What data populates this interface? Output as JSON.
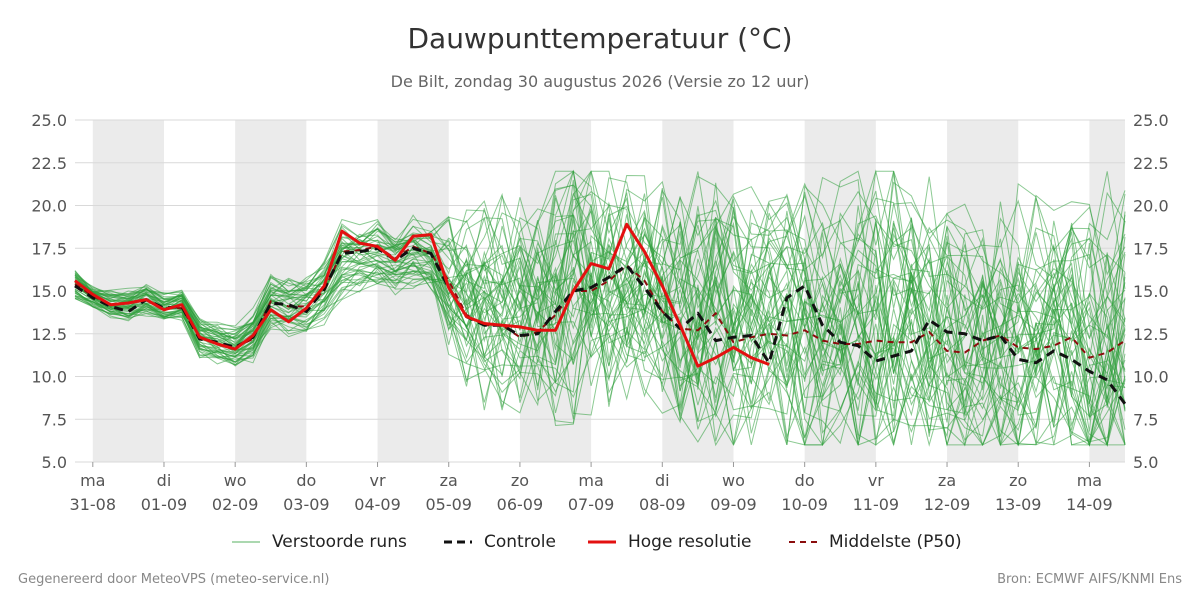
{
  "header": {
    "title": "Dauwpunttemperatuur (°C)",
    "subtitle": "De Bilt, zondag 30 augustus 2026 (Versie zo 12 uur)"
  },
  "legend": {
    "ensemble": "Verstoorde runs",
    "control": "Controle",
    "hires": "Hoge resolutie",
    "median": "Middelste (P50)"
  },
  "footer": {
    "left": "Gegenereerd door MeteoVPS (meteo-service.nl)",
    "right": "Bron: ECMWF AIFS/KNMI Ens"
  },
  "colors": {
    "ensemble": "#2e9e3a",
    "control": "#111111",
    "hires": "#e31010",
    "median": "#8b0d0d",
    "weekend_band": "#ebebeb",
    "grid": "#d9d9d9"
  },
  "chart_data": {
    "type": "line",
    "title": "Dauwpunttemperatuur (°C)",
    "ylim": [
      5.0,
      25.0
    ],
    "yticks": [
      "5.0",
      "7.5",
      "10.0",
      "12.5",
      "15.0",
      "17.5",
      "20.0",
      "22.5",
      "25.0"
    ],
    "xlim": [
      -0.25,
      14.5
    ],
    "x_unit": "days since 31-08",
    "grid": "horizontal",
    "legend_position": "bottom",
    "days": [
      {
        "weekday": "ma",
        "date": "31-08"
      },
      {
        "weekday": "di",
        "date": "01-09"
      },
      {
        "weekday": "wo",
        "date": "02-09"
      },
      {
        "weekday": "do",
        "date": "03-09"
      },
      {
        "weekday": "vr",
        "date": "04-09"
      },
      {
        "weekday": "za",
        "date": "05-09"
      },
      {
        "weekday": "zo",
        "date": "06-09"
      },
      {
        "weekday": "ma",
        "date": "07-09"
      },
      {
        "weekday": "di",
        "date": "08-09"
      },
      {
        "weekday": "wo",
        "date": "09-09"
      },
      {
        "weekday": "do",
        "date": "10-09"
      },
      {
        "weekday": "vr",
        "date": "11-09"
      },
      {
        "weekday": "za",
        "date": "12-09"
      },
      {
        "weekday": "zo",
        "date": "13-09"
      },
      {
        "weekday": "ma",
        "date": "14-09"
      }
    ],
    "shaded_bands": [
      [
        0,
        1
      ],
      [
        2,
        3
      ],
      [
        4,
        5
      ],
      [
        6,
        7
      ],
      [
        8,
        9
      ],
      [
        10,
        11
      ],
      [
        12,
        13
      ],
      [
        14,
        14.5
      ]
    ],
    "series": [
      {
        "name": "Controle",
        "style": "dashed",
        "x": [
          -0.25,
          0,
          0.25,
          0.5,
          0.75,
          1,
          1.25,
          1.5,
          1.75,
          2,
          2.25,
          2.5,
          2.75,
          3,
          3.25,
          3.5,
          3.75,
          4,
          4.25,
          4.5,
          4.75,
          5,
          5.25,
          5.5,
          5.75,
          6,
          6.25,
          6.5,
          6.75,
          7,
          7.25,
          7.5,
          7.75,
          8,
          8.25,
          8.5,
          8.75,
          9,
          9.25,
          9.5,
          9.75,
          10,
          10.25,
          10.5,
          10.75,
          11,
          11.25,
          11.5,
          11.75,
          12,
          12.25,
          12.5,
          12.75,
          13,
          13.25,
          13.5,
          13.75,
          14,
          14.25,
          14.5
        ],
        "values": [
          15.3,
          14.6,
          14.1,
          13.8,
          14.5,
          14.0,
          14.1,
          12.2,
          12.0,
          11.7,
          12.3,
          14.3,
          14.2,
          13.8,
          15.1,
          17.2,
          17.3,
          17.5,
          16.8,
          17.5,
          17.2,
          15.2,
          13.5,
          13.0,
          13.0,
          12.4,
          12.5,
          13.8,
          15.0,
          15.2,
          15.8,
          16.5,
          15.2,
          13.8,
          12.8,
          13.7,
          12.1,
          12.3,
          12.4,
          10.8,
          14.6,
          15.3,
          13.0,
          12.0,
          11.8,
          10.9,
          11.2,
          11.5,
          13.3,
          12.6,
          12.5,
          12.1,
          12.4,
          11.0,
          10.8,
          11.5,
          11.0,
          10.3,
          9.8,
          8.4
        ]
      },
      {
        "name": "Hoge resolutie",
        "style": "solid",
        "x": [
          -0.25,
          0,
          0.25,
          0.5,
          0.75,
          1,
          1.25,
          1.5,
          1.75,
          2,
          2.25,
          2.5,
          2.75,
          3,
          3.25,
          3.5,
          3.75,
          4,
          4.25,
          4.5,
          4.75,
          5,
          5.25,
          5.5,
          5.75,
          6,
          6.25,
          6.5,
          6.75,
          7,
          7.25,
          7.5,
          7.75,
          8,
          8.25,
          8.5,
          8.75,
          9,
          9.25,
          9.5
        ],
        "values": [
          15.6,
          14.8,
          14.2,
          14.3,
          14.5,
          13.9,
          14.2,
          12.3,
          11.9,
          11.6,
          12.4,
          13.9,
          13.2,
          14.0,
          15.3,
          18.5,
          17.8,
          17.6,
          16.8,
          18.2,
          18.3,
          15.2,
          13.5,
          13.1,
          13.0,
          12.9,
          12.7,
          12.7,
          15.0,
          16.6,
          16.3,
          18.9,
          17.3,
          15.3,
          13.0,
          10.6,
          11.1,
          11.7,
          11.1,
          10.7
        ]
      },
      {
        "name": "Middelste (P50)",
        "style": "dashed",
        "x": [
          -0.25,
          0,
          0.25,
          0.5,
          0.75,
          1,
          1.25,
          1.5,
          1.75,
          2,
          2.25,
          2.5,
          2.75,
          3,
          3.25,
          3.5,
          3.75,
          4,
          4.25,
          4.5,
          4.75,
          5,
          5.25,
          5.5,
          5.75,
          6,
          6.25,
          6.5,
          6.75,
          7,
          7.25,
          7.5,
          7.75,
          8,
          8.25,
          8.5,
          8.75,
          9,
          9.25,
          9.5,
          9.75,
          10,
          10.25,
          10.5,
          10.75,
          11,
          11.25,
          11.5,
          11.75,
          12,
          12.25,
          12.5,
          12.75,
          13,
          13.25,
          13.5,
          13.75,
          14,
          14.25,
          14.5
        ],
        "values": [
          15.4,
          14.7,
          14.2,
          14.3,
          14.5,
          14.0,
          14.0,
          12.3,
          11.9,
          11.7,
          12.2,
          14.4,
          14.1,
          14.1,
          15.0,
          17.3,
          17.4,
          17.6,
          16.9,
          17.6,
          17.2,
          15.6,
          13.6,
          13.0,
          13.0,
          12.3,
          12.6,
          13.6,
          15.0,
          15.0,
          15.6,
          16.5,
          15.6,
          13.8,
          12.8,
          12.7,
          13.7,
          12.0,
          12.3,
          12.5,
          12.4,
          12.7,
          12.1,
          11.9,
          11.9,
          12.1,
          12.0,
          12.0,
          12.6,
          11.5,
          11.4,
          12.1,
          12.4,
          11.7,
          11.6,
          11.8,
          12.3,
          11.1,
          11.4,
          12.1
        ]
      },
      {
        "name": "Verstoorde runs",
        "style": "ensemble",
        "x": [
          -0.25,
          0,
          0.25,
          0.5,
          0.75,
          1,
          1.25,
          1.5,
          1.75,
          2,
          2.25,
          2.5,
          2.75,
          3,
          3.25,
          3.5,
          3.75,
          4,
          4.25,
          4.5,
          4.75,
          5,
          5.25,
          5.5,
          5.75,
          6,
          6.25,
          6.5,
          6.75,
          7,
          7.25,
          7.5,
          7.75,
          8,
          8.25,
          8.5,
          8.75,
          9,
          9.25,
          9.5,
          9.75,
          10,
          10.25,
          10.5,
          10.75,
          11,
          11.25,
          11.5,
          11.75,
          12,
          12.25,
          12.5,
          12.75,
          13,
          13.25,
          13.5,
          13.75,
          14,
          14.25,
          14.5
        ],
        "p10": [
          14.7,
          14.2,
          13.7,
          13.5,
          13.9,
          13.5,
          13.6,
          11.5,
          11.2,
          10.9,
          11.4,
          13.2,
          13.0,
          13.0,
          13.7,
          15.3,
          15.6,
          15.8,
          15.4,
          15.7,
          15.3,
          13.6,
          12.1,
          11.5,
          11.3,
          10.9,
          10.9,
          11.0,
          11.5,
          11.6,
          11.9,
          12.1,
          11.9,
          11.2,
          10.3,
          10.0,
          10.2,
          9.8,
          9.7,
          9.6,
          9.4,
          9.2,
          9.0,
          9.0,
          8.8,
          8.7,
          8.7,
          8.6,
          8.7,
          8.5,
          8.4,
          8.4,
          8.3,
          8.3,
          8.2,
          8.1,
          8.0,
          7.9,
          7.9,
          7.8
        ],
        "p90": [
          16.0,
          15.1,
          14.8,
          14.9,
          15.2,
          14.6,
          14.9,
          13.2,
          12.8,
          12.6,
          13.5,
          15.4,
          15.4,
          15.6,
          16.4,
          18.4,
          18.2,
          18.6,
          17.9,
          18.6,
          18.4,
          17.6,
          17.5,
          17.3,
          17.4,
          16.8,
          17.0,
          18.2,
          19.3,
          19.4,
          18.8,
          18.9,
          18.6,
          18.0,
          17.6,
          17.4,
          17.7,
          17.2,
          17.1,
          16.9,
          17.3,
          17.3,
          17.0,
          16.8,
          17.3,
          17.6,
          17.5,
          17.0,
          16.8,
          16.9,
          16.5,
          16.4,
          16.2,
          16.3,
          16.1,
          16.4,
          16.8,
          16.6,
          16.7,
          16.9
        ]
      }
    ]
  }
}
